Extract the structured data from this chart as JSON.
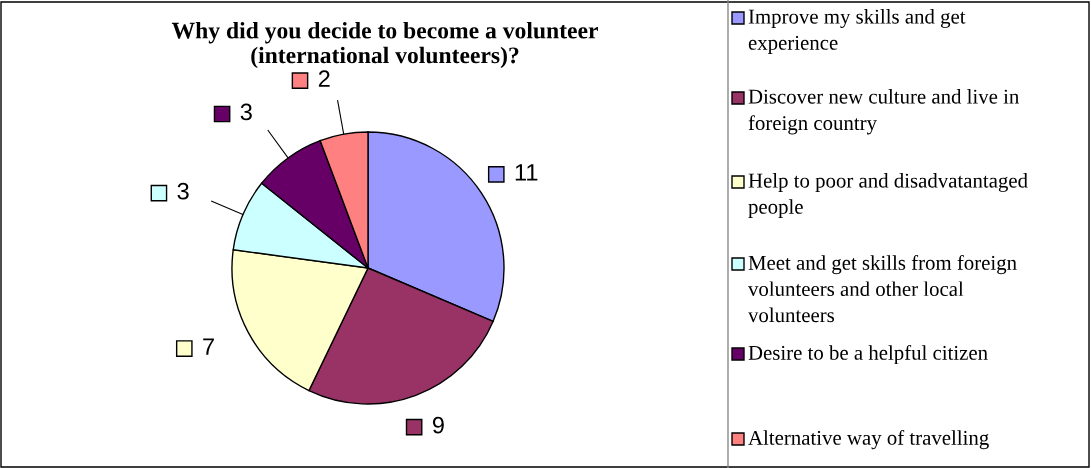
{
  "chart_data": {
    "type": "pie",
    "title": "Why did you decide to become a volunteer (international volunteers)?",
    "categories": [
      "Improve my skills and get experience",
      "Discover new culture and live in foreign country",
      "Help to poor and disadvatantaged people",
      "Meet and get skills from foreign volunteers and other local volunteers",
      "Desire to be a helpful citizen",
      "Alternative way of travelling"
    ],
    "values": [
      11,
      9,
      7,
      3,
      3,
      2
    ],
    "colors": [
      "#9999ff",
      "#993366",
      "#ffffcc",
      "#ccffff",
      "#660066",
      "#ff8080"
    ],
    "data_labels": true,
    "legend": "right"
  }
}
